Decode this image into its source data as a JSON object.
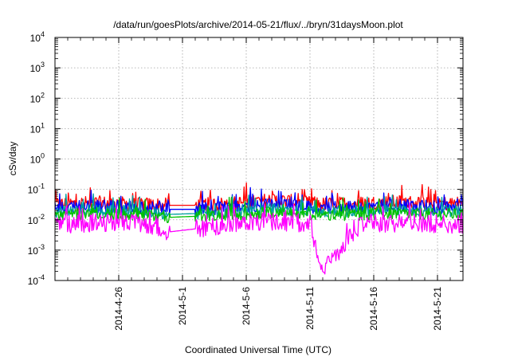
{
  "chart_data": {
    "type": "line",
    "title": "/data/run/goesPlots/archive/2014-05-21/flux/../bryn/31daysMoon.plot",
    "xlabel": "Coordinated Universal Time (UTC)",
    "ylabel": "cSv/day",
    "yscale": "log",
    "ylim": [
      0.0001,
      10000
    ],
    "y_ticks": [
      {
        "value": 0.0001,
        "base": "10",
        "exp": "-4"
      },
      {
        "value": 0.001,
        "base": "10",
        "exp": "-3"
      },
      {
        "value": 0.01,
        "base": "10",
        "exp": "-2"
      },
      {
        "value": 0.1,
        "base": "10",
        "exp": "-1"
      },
      {
        "value": 1,
        "base": "10",
        "exp": "0"
      },
      {
        "value": 10,
        "base": "10",
        "exp": "1"
      },
      {
        "value": 100,
        "base": "10",
        "exp": "2"
      },
      {
        "value": 1000,
        "base": "10",
        "exp": "3"
      },
      {
        "value": 10000,
        "base": "10",
        "exp": "4"
      }
    ],
    "xlim": [
      "2014-04-21",
      "2014-05-23"
    ],
    "x_ticks": [
      "2014-4-26",
      "2014-5-1",
      "2014-5-6",
      "2014-5-11",
      "2014-5-16",
      "2014-5-21"
    ],
    "x_tick_dates": [
      "2014-04-26",
      "2014-05-01",
      "2014-05-06",
      "2014-05-11",
      "2014-05-16",
      "2014-05-21"
    ],
    "grid": true,
    "data_gap": [
      "2014-04-30",
      "2014-05-02"
    ],
    "series": [
      {
        "color": "#ff0000",
        "x": [
          "2014-04-21",
          "2014-04-24",
          "2014-04-27",
          "2014-04-30",
          "2014-05-02",
          "2014-05-05",
          "2014-05-08",
          "2014-05-11",
          "2014-05-12",
          "2014-05-15",
          "2014-05-18",
          "2014-05-21",
          "2014-05-23"
        ],
        "values": [
          0.032,
          0.036,
          0.033,
          0.03,
          0.03,
          0.034,
          0.045,
          0.035,
          0.032,
          0.035,
          0.038,
          0.034,
          0.034
        ]
      },
      {
        "color": "#0000ff",
        "x": [
          "2014-04-21",
          "2014-04-24",
          "2014-04-27",
          "2014-04-30",
          "2014-05-02",
          "2014-05-05",
          "2014-05-08",
          "2014-05-11",
          "2014-05-12",
          "2014-05-15",
          "2014-05-18",
          "2014-05-21",
          "2014-05-23"
        ],
        "values": [
          0.024,
          0.028,
          0.026,
          0.022,
          0.022,
          0.026,
          0.032,
          0.026,
          0.024,
          0.026,
          0.029,
          0.026,
          0.026
        ]
      },
      {
        "color": "#00a0a0",
        "x": [
          "2014-04-21",
          "2014-04-24",
          "2014-04-27",
          "2014-04-30",
          "2014-05-02",
          "2014-05-05",
          "2014-05-08",
          "2014-05-11",
          "2014-05-12",
          "2014-05-15",
          "2014-05-18",
          "2014-05-21",
          "2014-05-23"
        ],
        "values": [
          0.018,
          0.02,
          0.019,
          0.015,
          0.016,
          0.019,
          0.022,
          0.019,
          0.018,
          0.019,
          0.021,
          0.019,
          0.019
        ]
      },
      {
        "color": "#00c000",
        "x": [
          "2014-04-21",
          "2014-04-24",
          "2014-04-27",
          "2014-04-30",
          "2014-05-02",
          "2014-05-05",
          "2014-05-08",
          "2014-05-11",
          "2014-05-12",
          "2014-05-15",
          "2014-05-18",
          "2014-05-21",
          "2014-05-23"
        ],
        "values": [
          0.014,
          0.016,
          0.015,
          0.012,
          0.013,
          0.015,
          0.017,
          0.015,
          0.014,
          0.015,
          0.016,
          0.015,
          0.015
        ]
      },
      {
        "color": "#ff00ff",
        "x": [
          "2014-04-21",
          "2014-04-24",
          "2014-04-27",
          "2014-04-30",
          "2014-05-02",
          "2014-05-05",
          "2014-05-08",
          "2014-05-11",
          "2014-05-12",
          "2014-05-15",
          "2014-05-18",
          "2014-05-21",
          "2014-05-23"
        ],
        "values": [
          0.007,
          0.008,
          0.0075,
          0.004,
          0.005,
          0.0075,
          0.009,
          0.0075,
          0.0002,
          0.0075,
          0.008,
          0.0075,
          0.007
        ]
      }
    ]
  }
}
